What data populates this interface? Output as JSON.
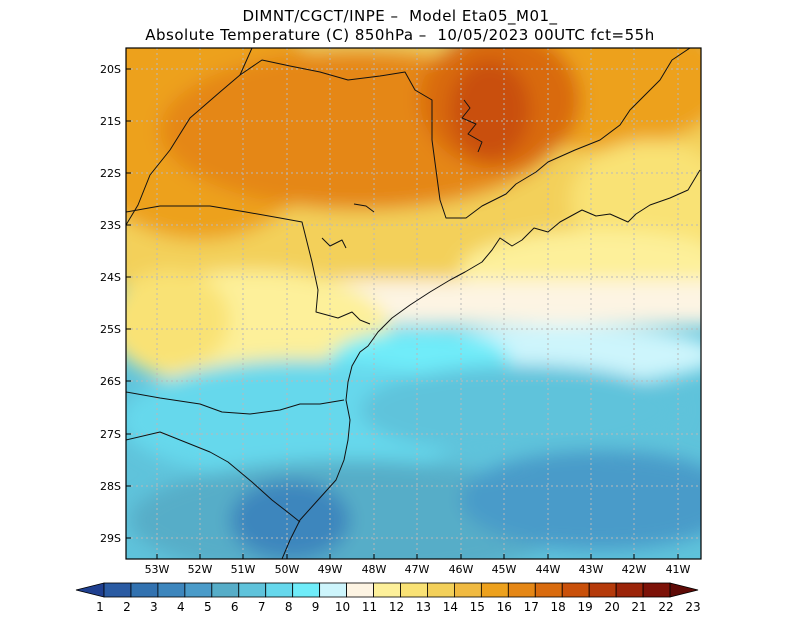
{
  "header": {
    "line1": "DIMNT/CGCT/INPE –  Model Eta05_M01_",
    "line2": "Absolute Temperature (C) 850hPa –  10/05/2023 00UTC fct=55h"
  },
  "map": {
    "lat_labels": [
      "20S",
      "21S",
      "22S",
      "23S",
      "24S",
      "25S",
      "26S",
      "27S",
      "28S",
      "29S"
    ],
    "lon_labels": [
      "53W",
      "52W",
      "51W",
      "50W",
      "49W",
      "48W",
      "47W",
      "46W",
      "45W",
      "44W",
      "43W",
      "42W",
      "41W"
    ]
  },
  "colorbar": {
    "labels": [
      "1",
      "2",
      "3",
      "4",
      "5",
      "6",
      "7",
      "8",
      "9",
      "10",
      "11",
      "12",
      "13",
      "14",
      "15",
      "16",
      "17",
      "18",
      "19",
      "20",
      "21",
      "22",
      "23"
    ],
    "colors": [
      "#1f3f8f",
      "#2a5ba3",
      "#3272b0",
      "#3d86bd",
      "#4a9bc9",
      "#56adc8",
      "#5fc3db",
      "#66d8ec",
      "#6fecf9",
      "#cdf5fc",
      "#fdf4e3",
      "#fdf09a",
      "#f9e275",
      "#f3d05a",
      "#f0ba41",
      "#eda11d",
      "#e58716",
      "#d96b0e",
      "#c9500a",
      "#b53a0a",
      "#9b2409",
      "#7d1208",
      "#5e0a06"
    ]
  }
}
